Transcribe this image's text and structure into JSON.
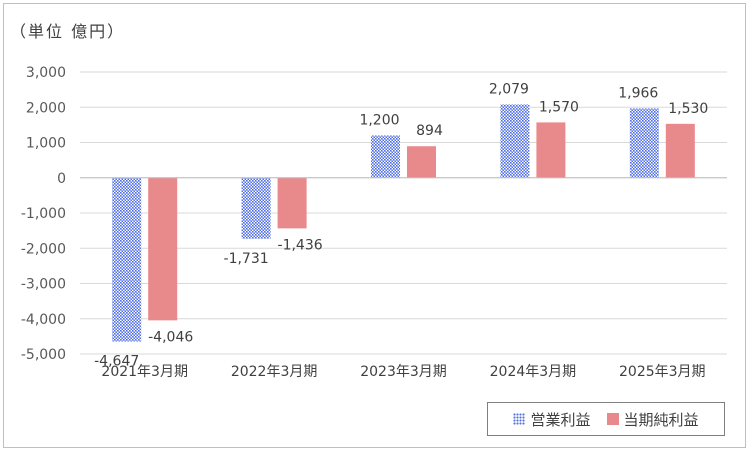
{
  "unit_label": "（単位 億円）",
  "chart_data": {
    "type": "bar",
    "categories": [
      "2021年3月期",
      "2022年3月期",
      "2023年3月期",
      "2024年3月期",
      "2025年3月期"
    ],
    "series": [
      {
        "name": "営業利益",
        "values": [
          -4647,
          -1731,
          1200,
          2079,
          1966
        ],
        "labels": [
          "-4,647",
          "-1,731",
          "1,200",
          "2,079",
          "1,966"
        ]
      },
      {
        "name": "当期純利益",
        "values": [
          -4046,
          -1436,
          894,
          1570,
          1530
        ],
        "labels": [
          "-4,046",
          "-1,436",
          "894",
          "1,570",
          "1,530"
        ]
      }
    ],
    "ylim": [
      -5000,
      3000
    ],
    "yticks": [
      3000,
      2000,
      1000,
      0,
      -1000,
      -2000,
      -3000,
      -4000,
      -5000
    ],
    "ytick_labels": [
      "3,000",
      "2,000",
      "1,000",
      "0",
      "-1,000",
      "-2,000",
      "-3,000",
      "-4,000",
      "-5,000"
    ],
    "grid": true,
    "legend_position": "bottom-right",
    "colors": {
      "営業利益": "#4f6ee0",
      "当期純利益": "#e8898b",
      "grid": "#d9d9d9"
    }
  }
}
